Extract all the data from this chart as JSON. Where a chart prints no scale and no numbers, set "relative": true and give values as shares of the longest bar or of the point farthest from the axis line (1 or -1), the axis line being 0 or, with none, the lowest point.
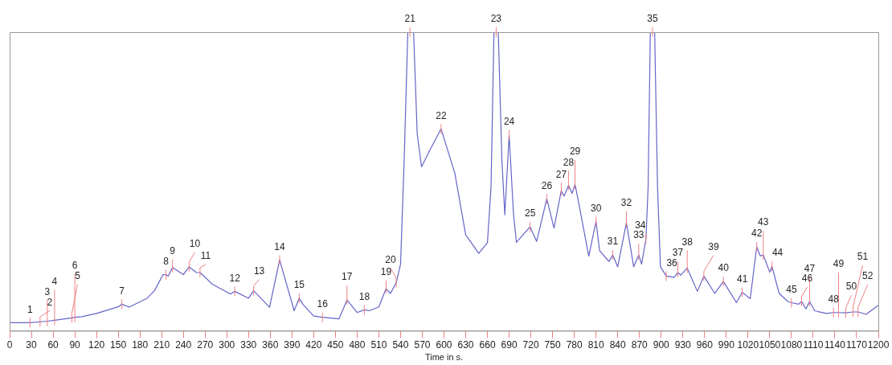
{
  "chart_data": {
    "type": "line",
    "xlabel": "Time in s.",
    "relative": true,
    "color": "#6464c8",
    "marker": "none",
    "line_style": "solid",
    "grid": false,
    "legend": false,
    "tick_labels": "x",
    "xlim": [
      0,
      1200
    ],
    "xticks": [
      0,
      30,
      60,
      90,
      120,
      150,
      180,
      210,
      240,
      270,
      300,
      330,
      360,
      390,
      420,
      450,
      480,
      510,
      540,
      570,
      600,
      630,
      660,
      690,
      720,
      750,
      780,
      810,
      840,
      870,
      900,
      930,
      960,
      990,
      1020,
      1050,
      1080,
      1110,
      1140,
      1170,
      1200
    ],
    "x": [
      0,
      28,
      42,
      52,
      62,
      86,
      90,
      100,
      120,
      150,
      155,
      165,
      190,
      200,
      212,
      216,
      219,
      225,
      240,
      248,
      258,
      263,
      280,
      305,
      311,
      330,
      337,
      359,
      373,
      393,
      400,
      405,
      420,
      432,
      455,
      466,
      480,
      490,
      497,
      510,
      520,
      526,
      534,
      540,
      545,
      550,
      553,
      558,
      563,
      569,
      580,
      596,
      615,
      630,
      648,
      660,
      665,
      669,
      672,
      675,
      680,
      684,
      690,
      696,
      700,
      719,
      728,
      742,
      752,
      762,
      766,
      772,
      777,
      781,
      786,
      800,
      810,
      815,
      828,
      833,
      840,
      852,
      862,
      869,
      873,
      879,
      882,
      885,
      888,
      891,
      895,
      899,
      907,
      918,
      923,
      927,
      936,
      950,
      959,
      974,
      986,
      1004,
      1012,
      1023,
      1032,
      1037,
      1041,
      1050,
      1053,
      1063,
      1075,
      1080,
      1090,
      1094,
      1100,
      1105,
      1112,
      1128,
      1138,
      1145,
      1155,
      1165,
      1172,
      1183,
      1200
    ],
    "values": [
      0.027,
      0.027,
      0.03,
      0.032,
      0.035,
      0.043,
      0.045,
      0.047,
      0.058,
      0.08,
      0.089,
      0.079,
      0.109,
      0.134,
      0.188,
      0.188,
      0.183,
      0.212,
      0.188,
      0.214,
      0.195,
      0.195,
      0.156,
      0.123,
      0.132,
      0.109,
      0.134,
      0.079,
      0.237,
      0.067,
      0.109,
      0.089,
      0.049,
      0.045,
      0.04,
      0.103,
      0.061,
      0.07,
      0.067,
      0.08,
      0.141,
      0.125,
      0.161,
      0.223,
      0.571,
      1,
      1,
      1,
      0.66,
      0.549,
      0.603,
      0.676,
      0.527,
      0.321,
      0.259,
      0.295,
      0.482,
      1,
      1,
      1,
      0.571,
      0.388,
      0.656,
      0.393,
      0.296,
      0.348,
      0.299,
      0.442,
      0.344,
      0.469,
      0.451,
      0.487,
      0.46,
      0.491,
      0.429,
      0.25,
      0.366,
      0.268,
      0.232,
      0.254,
      0.214,
      0.362,
      0.214,
      0.254,
      0.223,
      0.308,
      0.482,
      1,
      1,
      1,
      0.482,
      0.214,
      0.183,
      0.179,
      0.195,
      0.186,
      0.21,
      0.132,
      0.183,
      0.125,
      0.165,
      0.094,
      0.129,
      0.107,
      0.281,
      0.25,
      0.254,
      0.196,
      0.216,
      0.125,
      0.098,
      0.094,
      0.089,
      0.098,
      0.073,
      0.098,
      0.067,
      0.058,
      0.061,
      0.061,
      0.06,
      0.063,
      0.063,
      0.055,
      0.085
    ],
    "annotations": [
      {
        "text": "1",
        "x": 28,
        "y": 0.027
      },
      {
        "text": "2",
        "x": 42,
        "y": 0.03
      },
      {
        "text": "3",
        "x": 52,
        "y": 0.032
      },
      {
        "text": "4",
        "x": 62,
        "y": 0.035
      },
      {
        "text": "5",
        "x": 86,
        "y": 0.043
      },
      {
        "text": "6",
        "x": 90,
        "y": 0.045
      },
      {
        "text": "7",
        "x": 155,
        "y": 0.089
      },
      {
        "text": "8",
        "x": 216,
        "y": 0.188
      },
      {
        "text": "9",
        "x": 225,
        "y": 0.212
      },
      {
        "text": "10",
        "x": 248,
        "y": 0.214
      },
      {
        "text": "11",
        "x": 263,
        "y": 0.195
      },
      {
        "text": "12",
        "x": 311,
        "y": 0.132
      },
      {
        "text": "13",
        "x": 337,
        "y": 0.134
      },
      {
        "text": "14",
        "x": 373,
        "y": 0.237
      },
      {
        "text": "15",
        "x": 400,
        "y": 0.109
      },
      {
        "text": "16",
        "x": 432,
        "y": 0.045
      },
      {
        "text": "17",
        "x": 466,
        "y": 0.103
      },
      {
        "text": "18",
        "x": 490,
        "y": 0.07
      },
      {
        "text": "19",
        "x": 520,
        "y": 0.141
      },
      {
        "text": "20",
        "x": 534,
        "y": 0.161
      },
      {
        "text": "21",
        "x": 553,
        "y": 1
      },
      {
        "text": "22",
        "x": 596,
        "y": 0.676
      },
      {
        "text": "23",
        "x": 672,
        "y": 1
      },
      {
        "text": "24",
        "x": 690,
        "y": 0.656
      },
      {
        "text": "25",
        "x": 719,
        "y": 0.348
      },
      {
        "text": "26",
        "x": 742,
        "y": 0.442
      },
      {
        "text": "27",
        "x": 762,
        "y": 0.469
      },
      {
        "text": "28",
        "x": 772,
        "y": 0.487
      },
      {
        "text": "29",
        "x": 781,
        "y": 0.491
      },
      {
        "text": "30",
        "x": 810,
        "y": 0.366
      },
      {
        "text": "31",
        "x": 833,
        "y": 0.254
      },
      {
        "text": "32",
        "x": 852,
        "y": 0.362
      },
      {
        "text": "33",
        "x": 869,
        "y": 0.254
      },
      {
        "text": "34",
        "x": 879,
        "y": 0.308
      },
      {
        "text": "35",
        "x": 888,
        "y": 1
      },
      {
        "text": "36",
        "x": 907,
        "y": 0.183
      },
      {
        "text": "37",
        "x": 923,
        "y": 0.195
      },
      {
        "text": "38",
        "x": 936,
        "y": 0.21
      },
      {
        "text": "39",
        "x": 959,
        "y": 0.183
      },
      {
        "text": "40",
        "x": 986,
        "y": 0.165
      },
      {
        "text": "41",
        "x": 1012,
        "y": 0.129
      },
      {
        "text": "42",
        "x": 1032,
        "y": 0.281
      },
      {
        "text": "43",
        "x": 1041,
        "y": 0.254
      },
      {
        "text": "44",
        "x": 1053,
        "y": 0.216
      },
      {
        "text": "45",
        "x": 1080,
        "y": 0.094
      },
      {
        "text": "46",
        "x": 1094,
        "y": 0.098
      },
      {
        "text": "47",
        "x": 1105,
        "y": 0.098
      },
      {
        "text": "48",
        "x": 1138,
        "y": 0.061
      },
      {
        "text": "49",
        "x": 1145,
        "y": 0.061
      },
      {
        "text": "50",
        "x": 1155,
        "y": 0.06
      },
      {
        "text": "51",
        "x": 1165,
        "y": 0.063
      },
      {
        "text": "52",
        "x": 1172,
        "y": 0.063
      }
    ]
  }
}
